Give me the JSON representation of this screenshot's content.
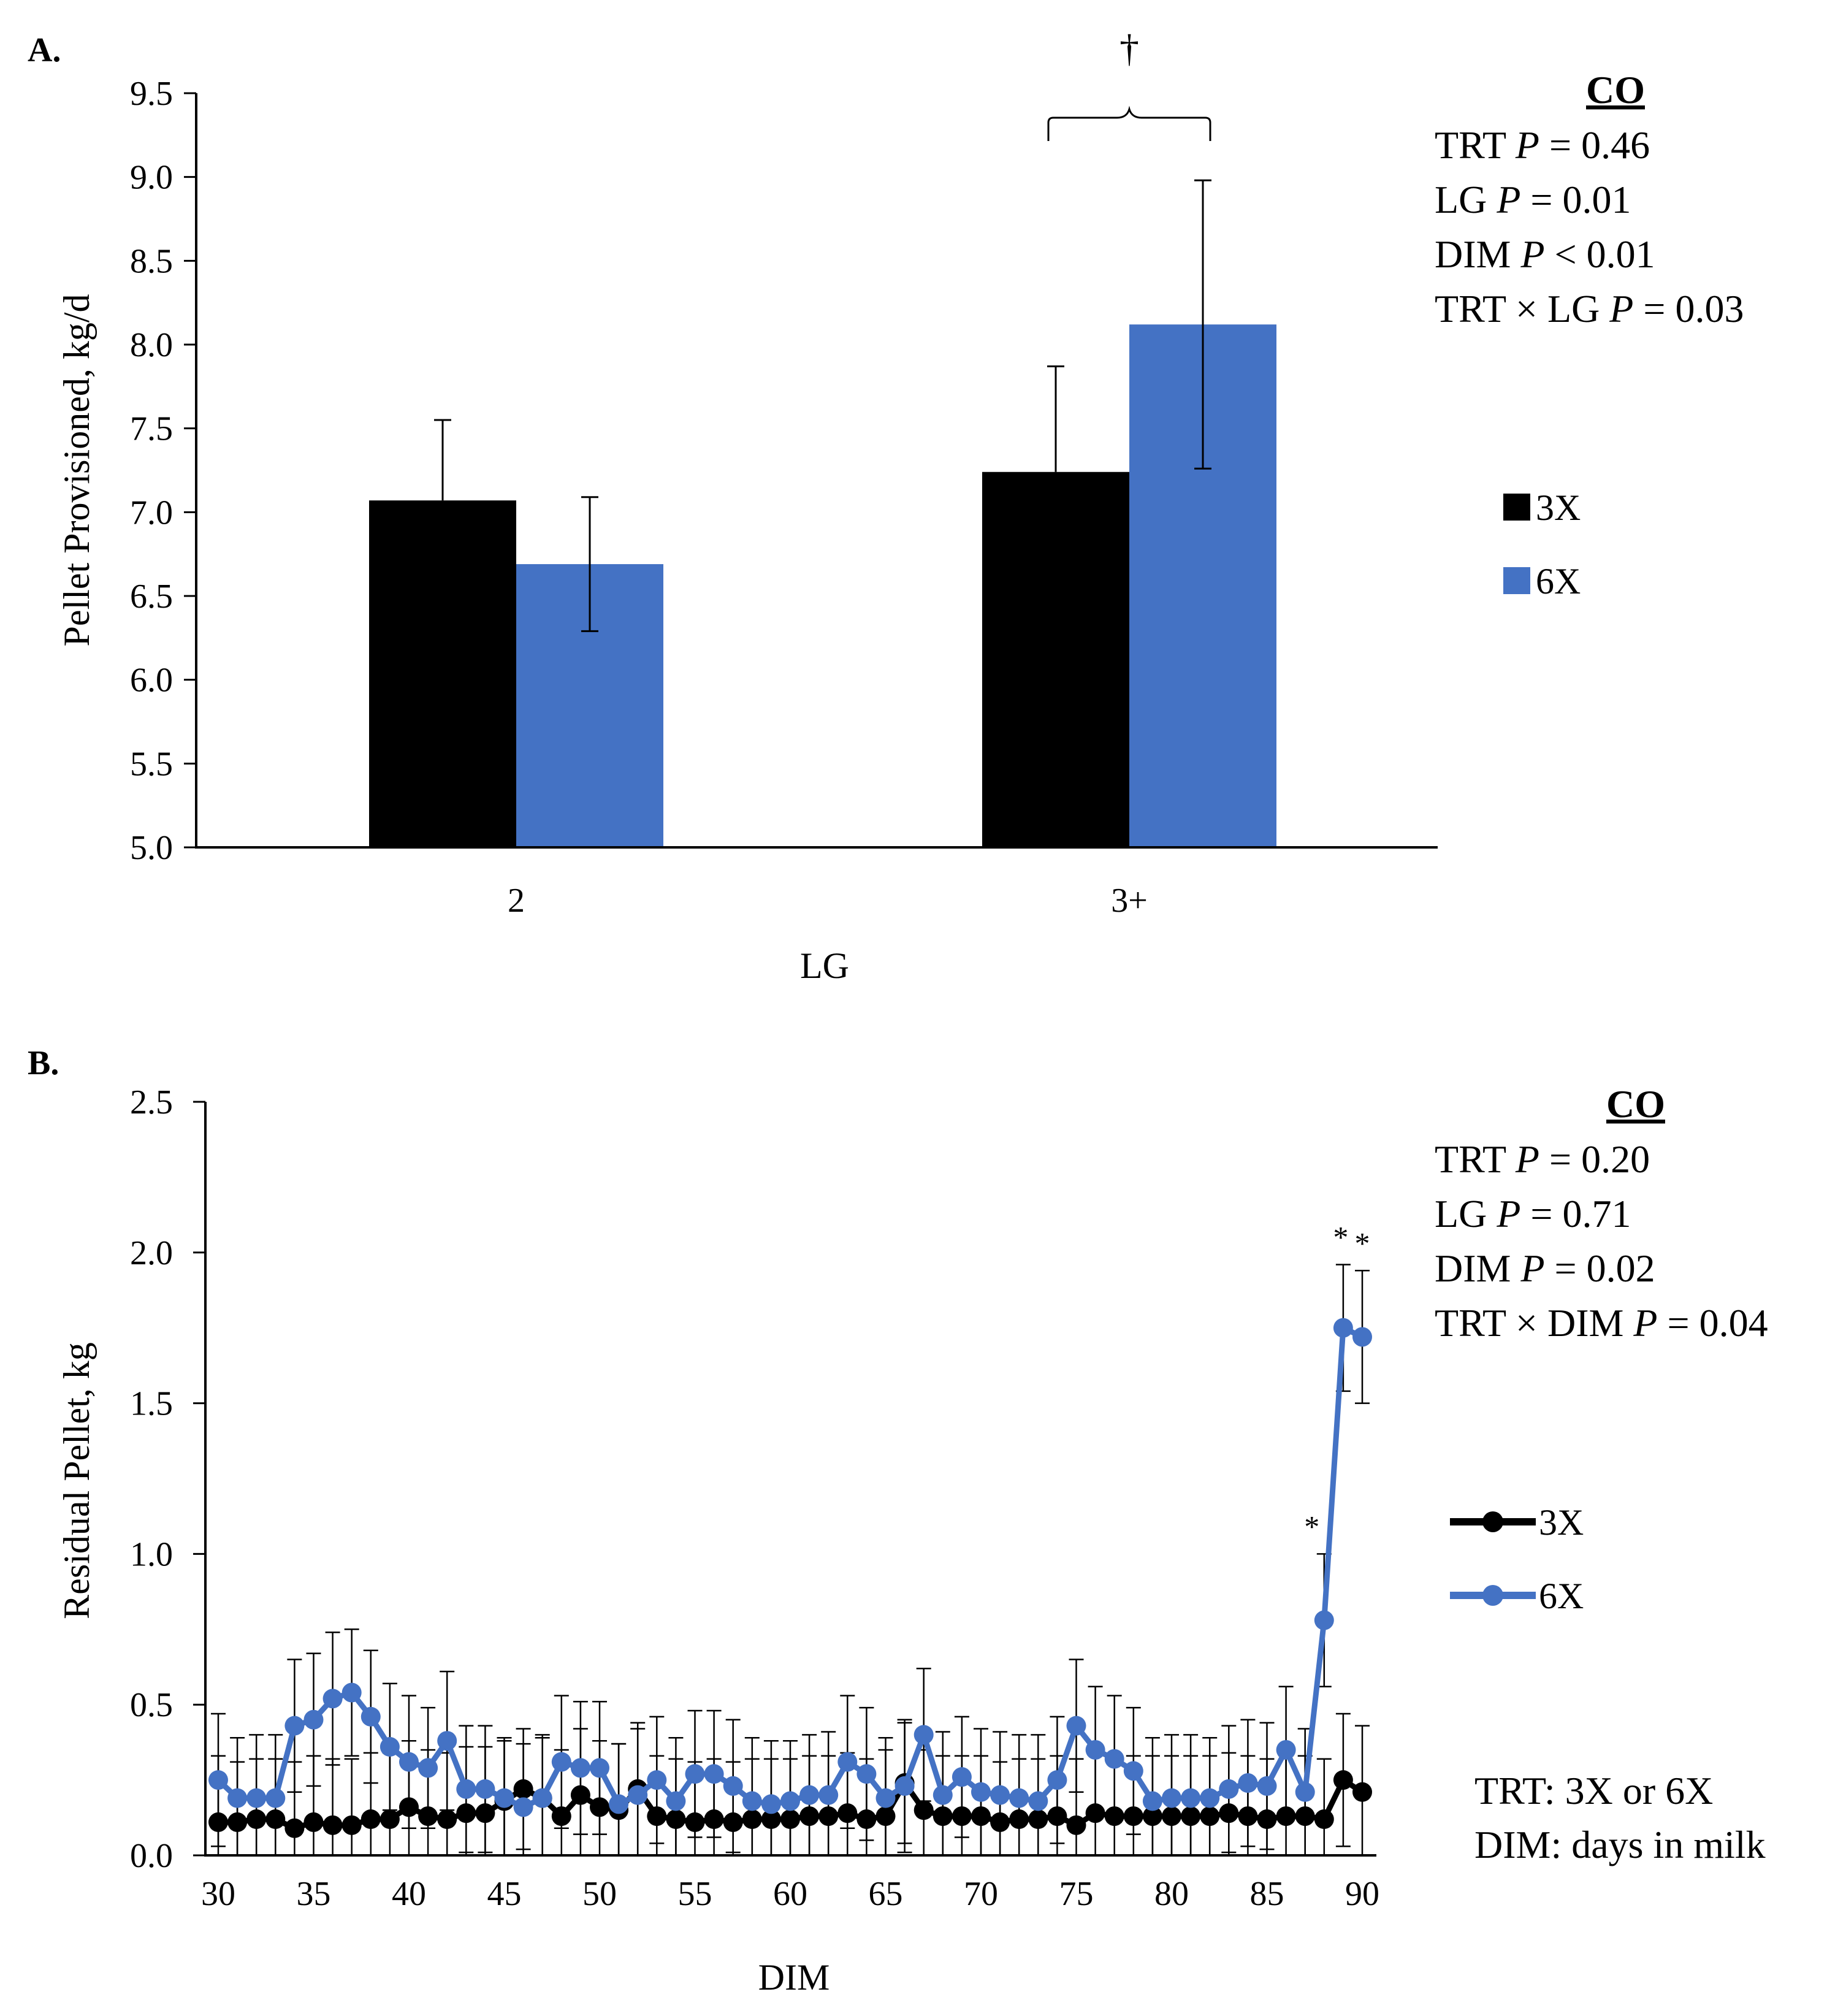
{
  "colors": {
    "3X": "#000000",
    "6X": "#4472c4"
  },
  "chart_data": [
    {
      "type": "bar",
      "panel_label": "A.",
      "xlabel": "LG",
      "ylabel": "Pellet Provisioned, kg/d",
      "ylim": [
        5.0,
        9.5
      ],
      "yticks": [
        "5.0",
        "5.5",
        "6.0",
        "6.5",
        "7.0",
        "7.5",
        "8.0",
        "8.5",
        "9.0",
        "9.5"
      ],
      "categories": [
        "2",
        "3+"
      ],
      "series": [
        {
          "name": "3X",
          "values": [
            7.07,
            7.24
          ],
          "errors": [
            0.48,
            0.63
          ]
        },
        {
          "name": "6X",
          "values": [
            6.69,
            8.12
          ],
          "errors": [
            0.4,
            0.86
          ]
        }
      ],
      "annotations": [
        {
          "text": "†",
          "category": "3+"
        }
      ],
      "stats": {
        "heading": "CO",
        "lines": [
          [
            "TRT ",
            "P",
            " = 0.46"
          ],
          [
            "LG ",
            "P",
            " = 0.01"
          ],
          [
            "DIM ",
            "P",
            " < 0.01"
          ],
          [
            "TRT × LG ",
            "P",
            " = 0.03"
          ]
        ]
      },
      "legend": [
        "3X",
        "6X"
      ],
      "legend_position": "right"
    },
    {
      "type": "line",
      "panel_label": "B.",
      "xlabel": "DIM",
      "ylabel": "Residual Pellet, kg",
      "ylim": [
        0.0,
        2.5
      ],
      "yticks": [
        "0.0",
        "0.5",
        "1.0",
        "1.5",
        "2.0",
        "2.5"
      ],
      "xlim": [
        30,
        90
      ],
      "xticks": [
        "30",
        "35",
        "40",
        "45",
        "50",
        "55",
        "60",
        "65",
        "70",
        "75",
        "80",
        "85",
        "90"
      ],
      "x": [
        30,
        31,
        32,
        33,
        34,
        35,
        36,
        37,
        38,
        39,
        40,
        41,
        42,
        43,
        44,
        45,
        46,
        47,
        48,
        49,
        50,
        51,
        52,
        53,
        54,
        55,
        56,
        57,
        58,
        59,
        60,
        61,
        62,
        63,
        64,
        65,
        66,
        67,
        68,
        69,
        70,
        71,
        72,
        73,
        74,
        75,
        76,
        77,
        78,
        79,
        80,
        81,
        82,
        83,
        84,
        85,
        86,
        87,
        88,
        89,
        90
      ],
      "series": [
        {
          "name": "3X",
          "values": [
            0.11,
            0.11,
            0.12,
            0.12,
            0.09,
            0.11,
            0.1,
            0.1,
            0.12,
            0.12,
            0.16,
            0.13,
            0.12,
            0.14,
            0.14,
            0.18,
            0.22,
            0.19,
            0.13,
            0.2,
            0.16,
            0.15,
            0.22,
            0.13,
            0.12,
            0.11,
            0.12,
            0.11,
            0.12,
            0.12,
            0.12,
            0.13,
            0.13,
            0.14,
            0.12,
            0.13,
            0.24,
            0.15,
            0.13,
            0.13,
            0.13,
            0.11,
            0.12,
            0.12,
            0.13,
            0.1,
            0.14,
            0.13,
            0.13,
            0.13,
            0.13,
            0.13,
            0.13,
            0.14,
            0.13,
            0.12,
            0.13,
            0.13,
            0.12,
            0.25,
            0.21
          ],
          "errors": [
            0.22,
            0.2,
            0.2,
            0.2,
            0.22,
            0.22,
            0.22,
            0.22,
            0.22,
            0.22,
            0.22,
            0.22,
            0.22,
            0.22,
            0.22,
            0.2,
            0.2,
            0.2,
            0.22,
            0.22,
            0.22,
            0.22,
            0.22,
            0.2,
            0.2,
            0.2,
            0.2,
            0.2,
            0.2,
            0.2,
            0.2,
            0.2,
            0.2,
            0.2,
            0.2,
            0.22,
            0.2,
            0.2,
            0.2,
            0.2,
            0.2,
            0.2,
            0.2,
            0.2,
            0.2,
            0.22,
            0.2,
            0.2,
            0.2,
            0.2,
            0.2,
            0.2,
            0.2,
            0.2,
            0.2,
            0.2,
            0.2,
            0.2,
            0.2,
            0.22,
            0.22
          ]
        },
        {
          "name": "6X",
          "values": [
            0.25,
            0.19,
            0.19,
            0.19,
            0.43,
            0.45,
            0.52,
            0.54,
            0.46,
            0.36,
            0.31,
            0.29,
            0.38,
            0.22,
            0.22,
            0.19,
            0.16,
            0.19,
            0.31,
            0.29,
            0.29,
            0.17,
            0.2,
            0.25,
            0.18,
            0.27,
            0.27,
            0.23,
            0.18,
            0.17,
            0.18,
            0.2,
            0.2,
            0.31,
            0.27,
            0.19,
            0.23,
            0.4,
            0.2,
            0.26,
            0.21,
            0.2,
            0.19,
            0.18,
            0.25,
            0.43,
            0.35,
            0.32,
            0.28,
            0.18,
            0.19,
            0.19,
            0.19,
            0.22,
            0.24,
            0.23,
            0.35,
            0.21,
            0.78,
            1.75,
            1.72
          ],
          "errors": [
            0.22,
            0.2,
            0.21,
            0.21,
            0.22,
            0.22,
            0.22,
            0.21,
            0.22,
            0.21,
            0.22,
            0.2,
            0.23,
            0.21,
            0.21,
            0.2,
            0.21,
            0.21,
            0.22,
            0.22,
            0.22,
            0.2,
            0.22,
            0.21,
            0.21,
            0.21,
            0.21,
            0.22,
            0.21,
            0.21,
            0.2,
            0.2,
            0.21,
            0.22,
            0.22,
            0.2,
            0.22,
            0.22,
            0.21,
            0.2,
            0.21,
            0.21,
            0.21,
            0.22,
            0.21,
            0.22,
            0.21,
            0.21,
            0.21,
            0.21,
            0.21,
            0.21,
            0.2,
            0.21,
            0.21,
            0.21,
            0.21,
            0.21,
            0.22,
            0.21,
            0.22
          ]
        }
      ],
      "annotations": [
        {
          "text": "*",
          "x": 88
        },
        {
          "text": "*",
          "x": 89
        },
        {
          "text": "*",
          "x": 90
        }
      ],
      "stats": {
        "heading": "CO",
        "lines": [
          [
            "TRT ",
            "P",
            " = 0.20"
          ],
          [
            "LG ",
            "P",
            " = 0.71"
          ],
          [
            "DIM ",
            "P",
            " = 0.02"
          ],
          [
            "TRT × DIM ",
            "P",
            " = 0.04"
          ]
        ]
      },
      "legend": [
        "3X",
        "6X"
      ],
      "legend_position": "right",
      "notes": [
        "TRT: 3X or 6X",
        "DIM: days in milk"
      ]
    }
  ]
}
